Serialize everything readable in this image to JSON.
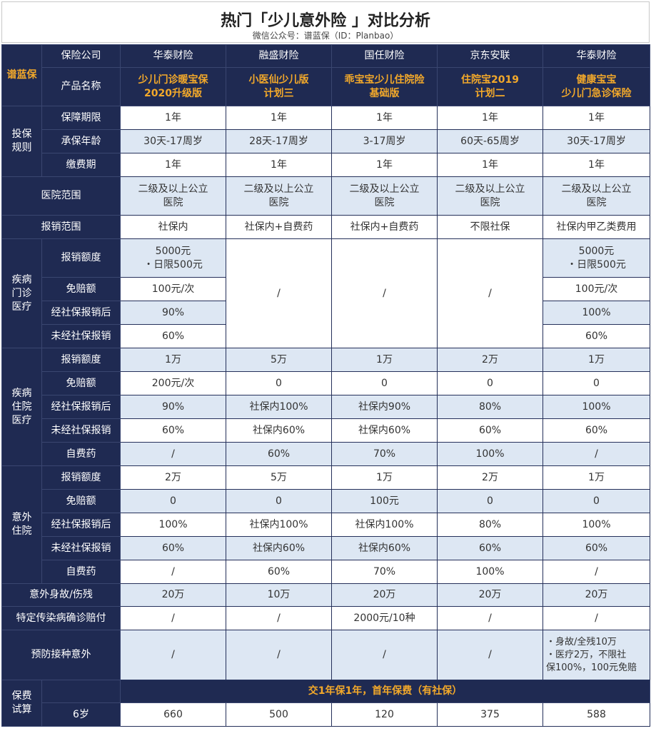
{
  "title": "热门「少儿意外险 」对比分析",
  "subtitle": "微信公众号：谱蓝保（ID：Planbao）",
  "brand": "谱蓝保",
  "colors": {
    "navy": "#1f2a52",
    "gold": "#f3a92a",
    "light_blue": "#dde7f3",
    "white": "#ffffff"
  },
  "table": {
    "company_label": "保险公司",
    "companies": [
      "华泰财险",
      "融盛财险",
      "国任财险",
      "京东安联",
      "华泰财险"
    ],
    "product_label": "产品名称",
    "products": [
      [
        "少儿门诊暖宝保",
        "2020升级版"
      ],
      [
        "小医仙少儿版",
        "计划三"
      ],
      [
        "乖宝宝少儿住院险",
        "基础版"
      ],
      [
        "住院宝2019",
        "计划二"
      ],
      [
        "健康宝宝",
        "少儿门急诊保险"
      ]
    ],
    "rules": {
      "group": "投保规则",
      "rows": [
        {
          "label": "保障期限",
          "values": [
            "1年",
            "1年",
            "1年",
            "1年",
            "1年"
          ]
        },
        {
          "label": "承保年龄",
          "values": [
            "30天-17周岁",
            "28天-17周岁",
            "3-17周岁",
            "60天-65周岁",
            "30天-17周岁"
          ]
        },
        {
          "label": "缴费期",
          "values": [
            "1年",
            "1年",
            "1年",
            "1年",
            "1年"
          ]
        }
      ]
    },
    "hospital": {
      "label": "医院范围",
      "values": [
        [
          "二级及以上公立",
          "医院"
        ],
        [
          "二级及以上公立",
          "医院"
        ],
        [
          "二级及以上公立",
          "医院"
        ],
        [
          "二级及以上公立",
          "医院"
        ],
        [
          "二级及以上公立",
          "医院"
        ]
      ]
    },
    "reimbursement_scope": {
      "label": "报销范围",
      "values": [
        "社保内",
        "社保内+自费药",
        "社保内+自费药",
        "不限社保",
        "社保内甲乙类费用"
      ]
    },
    "outpatient": {
      "group": "疾病门诊医疗",
      "rows": [
        {
          "label": "报销额度",
          "c1": [
            "5000元",
            "・日限500元"
          ],
          "c5": [
            "5000元",
            "・日限500元"
          ]
        },
        {
          "label": "免赔额",
          "c1": "100元/次",
          "c5": "100元/次"
        },
        {
          "label": "经社保报销后",
          "c1": "90%",
          "c5": "100%"
        },
        {
          "label": "未经社保报销",
          "c1": "60%",
          "c5": "60%"
        }
      ],
      "na": [
        "/",
        "/",
        "/"
      ]
    },
    "inpatient": {
      "group": "疾病住院医疗",
      "rows": [
        {
          "label": "报销额度",
          "values": [
            "1万",
            "5万",
            "1万",
            "2万",
            "1万"
          ]
        },
        {
          "label": "免赔额",
          "values": [
            "200元/次",
            "0",
            "0",
            "0",
            "0"
          ]
        },
        {
          "label": "经社保报销后",
          "values": [
            "90%",
            "社保内100%",
            "社保内90%",
            "80%",
            "100%"
          ]
        },
        {
          "label": "未经社保报销",
          "values": [
            "60%",
            "社保内60%",
            "社保内60%",
            "60%",
            "60%"
          ]
        },
        {
          "label": "自费药",
          "values": [
            "/",
            "60%",
            "70%",
            "100%",
            "/"
          ]
        }
      ]
    },
    "accident": {
      "group": "意外住院",
      "rows": [
        {
          "label": "报销额度",
          "values": [
            "2万",
            "5万",
            "1万",
            "2万",
            "1万"
          ]
        },
        {
          "label": "免赔额",
          "values": [
            "0",
            "0",
            "100元",
            "0",
            "0"
          ]
        },
        {
          "label": "经社保报销后",
          "values": [
            "100%",
            "社保内100%",
            "社保内100%",
            "80%",
            "100%"
          ]
        },
        {
          "label": "未经社保报销",
          "values": [
            "60%",
            "社保内60%",
            "社保内60%",
            "60%",
            "60%"
          ]
        },
        {
          "label": "自费药",
          "values": [
            "/",
            "60%",
            "70%",
            "100%",
            "/"
          ]
        }
      ]
    },
    "death": {
      "label": "意外身故/伤残",
      "values": [
        "20万",
        "10万",
        "20万",
        "20万",
        "20万"
      ]
    },
    "infectious": {
      "label": "特定传染病确诊赔付",
      "values": [
        "/",
        "/",
        "2000元/10种",
        "/",
        "/"
      ]
    },
    "vaccine": {
      "label": "预防接种意外",
      "values": [
        "/",
        "/",
        "/",
        "/"
      ],
      "c5": [
        "・身故/全残10万",
        "・医疗2万，不限社",
        "保100%，100元免赔"
      ]
    },
    "premium": {
      "group": "保费试算",
      "banner": "交1年保1年，首年保费（有社保）",
      "age_label": "6岁",
      "values": [
        "660",
        "500",
        "120",
        "375",
        "588"
      ]
    }
  }
}
